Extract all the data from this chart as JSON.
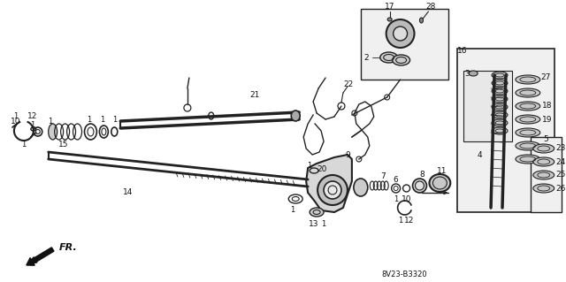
{
  "bg": "#ffffff",
  "lc": "#222222",
  "tc": "#111111",
  "fw": 6.4,
  "fh": 3.19,
  "dpi": 100,
  "code": "8V23-B3320",
  "arrow_label": "FR."
}
